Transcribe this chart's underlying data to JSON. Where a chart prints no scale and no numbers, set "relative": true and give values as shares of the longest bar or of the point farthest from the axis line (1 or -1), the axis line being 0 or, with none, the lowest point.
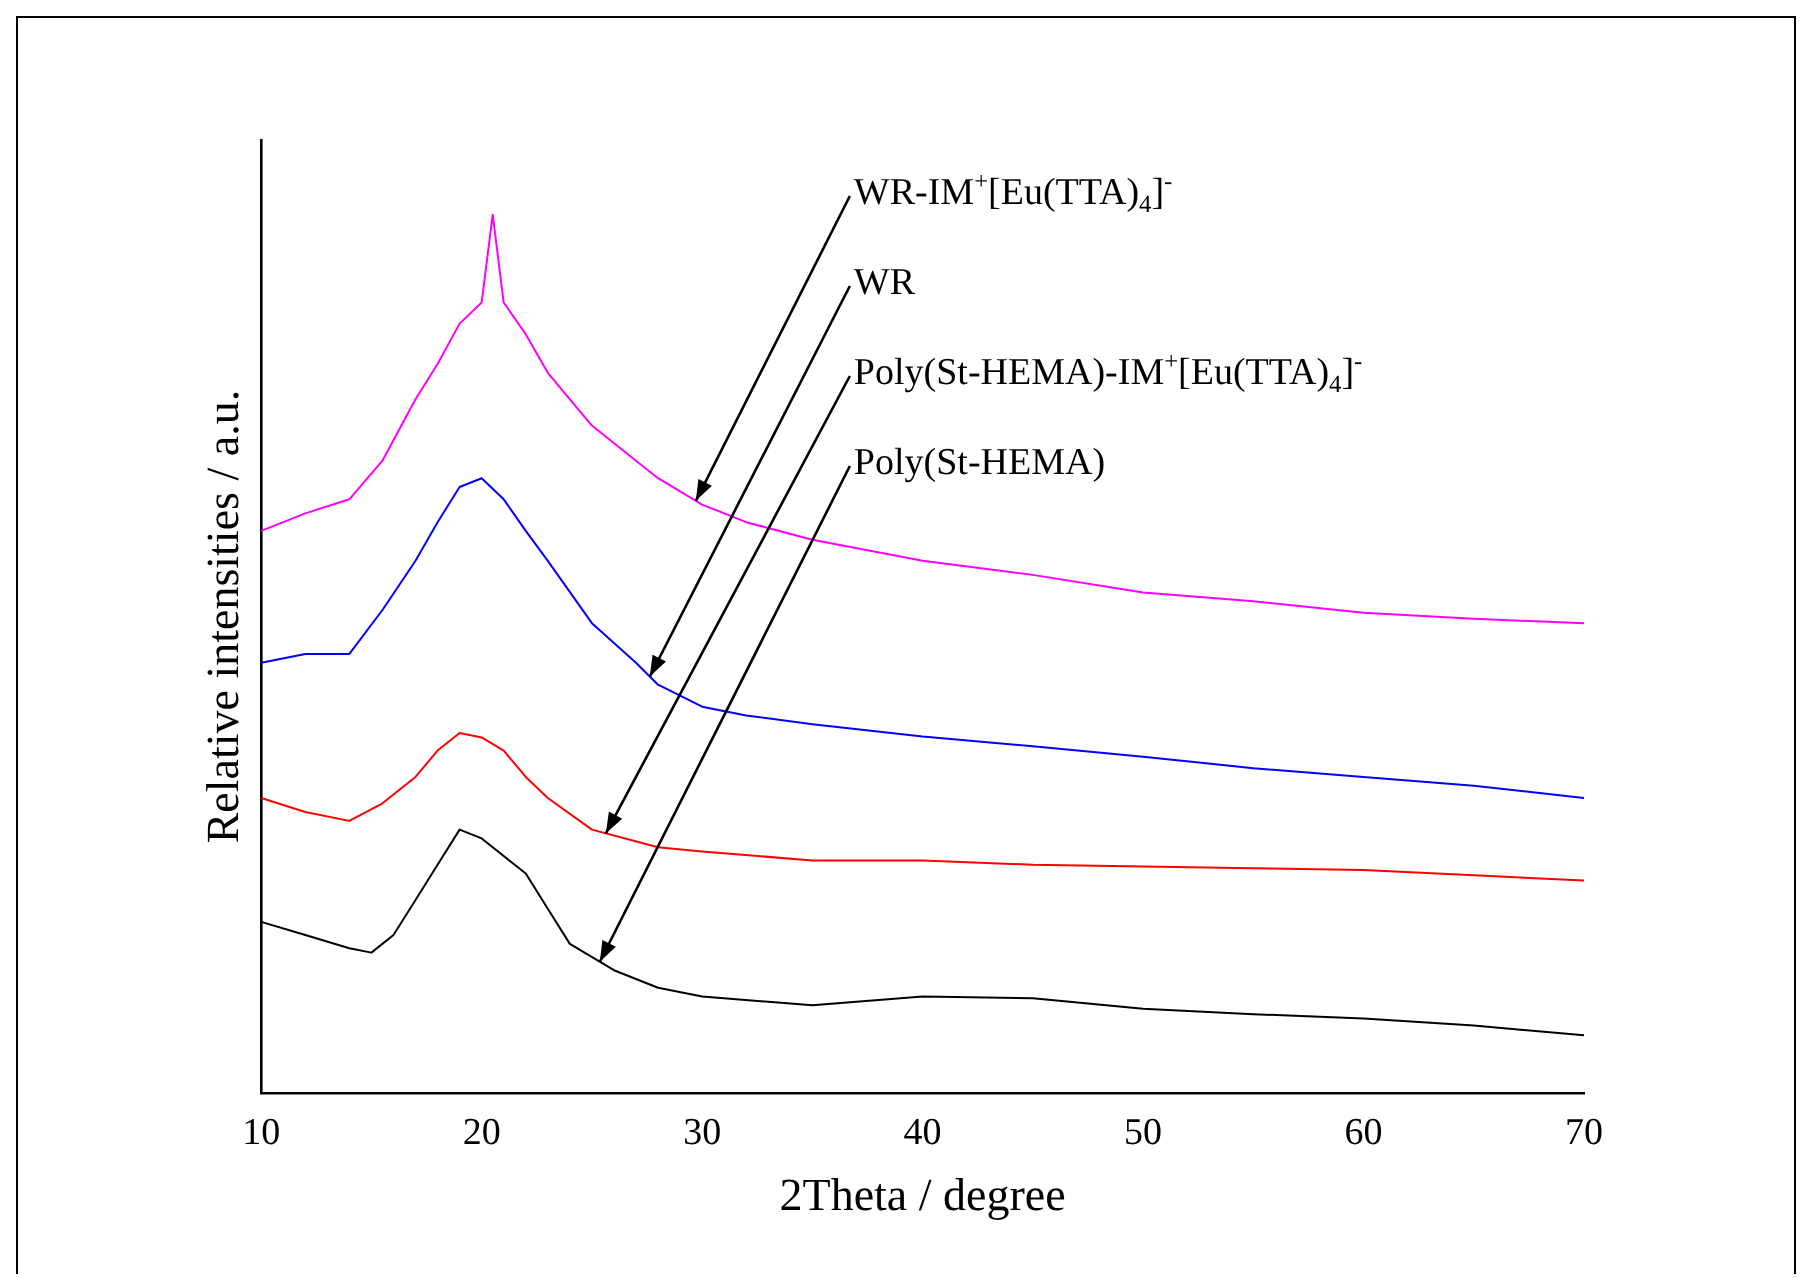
{
  "chart_data": {
    "type": "line",
    "relative": true,
    "xlabel": "2Theta / degree",
    "ylabel": "Relative intensities / a.u.",
    "xlim": [
      10,
      70
    ],
    "xticks": [
      10,
      20,
      30,
      40,
      50,
      60,
      70
    ],
    "tick_labels": "x",
    "grid": false,
    "legend": false,
    "marker": "none",
    "line_style": "solid",
    "series": [
      {
        "name": "WR-IM$^{+}$[Eu(TTA)$_{4}$]$^{-}$",
        "color": "#ff00ff",
        "x": [
          10,
          12,
          14,
          15.5,
          17,
          18,
          19,
          20,
          20.5,
          21,
          22,
          23,
          25,
          27,
          28,
          30,
          32,
          35,
          40,
          45,
          50,
          55,
          60,
          65,
          70
        ],
        "values": [
          0.64,
          0.66,
          0.676,
          0.72,
          0.79,
          0.83,
          0.876,
          0.9,
          1,
          0.9,
          0.864,
          0.82,
          0.76,
          0.72,
          0.7,
          0.67,
          0.65,
          0.63,
          0.606,
          0.59,
          0.57,
          0.56,
          0.547,
          0.54,
          0.535
        ]
      },
      {
        "name": "WR",
        "color": "#0000ff",
        "x": [
          10,
          12,
          14,
          15.5,
          17,
          18,
          19,
          20,
          21,
          22,
          23,
          25,
          27,
          28,
          30,
          32,
          35,
          40,
          45,
          50,
          55,
          60,
          65,
          70
        ],
        "values": [
          0.49,
          0.5,
          0.5,
          0.55,
          0.606,
          0.65,
          0.69,
          0.7,
          0.676,
          0.64,
          0.606,
          0.535,
          0.49,
          0.465,
          0.44,
          0.43,
          0.42,
          0.406,
          0.395,
          0.383,
          0.37,
          0.36,
          0.35,
          0.336
        ]
      },
      {
        "name": "Poly(St-HEMA)-IM$^{+}$[Eu(TTA)$_{4}$]$^{-}$",
        "color": "#ff0000",
        "x": [
          10,
          12,
          14,
          15.5,
          17,
          18,
          19,
          20,
          21,
          22,
          23,
          25,
          28,
          30,
          35,
          40,
          45,
          50,
          55,
          60,
          65,
          70
        ],
        "values": [
          0.336,
          0.32,
          0.31,
          0.33,
          0.36,
          0.39,
          0.41,
          0.405,
          0.39,
          0.36,
          0.336,
          0.3,
          0.28,
          0.275,
          0.265,
          0.265,
          0.26,
          0.258,
          0.256,
          0.254,
          0.248,
          0.242
        ]
      },
      {
        "name": "Poly(St-HEMA)",
        "color": "#000000",
        "x": [
          10,
          12,
          14,
          15,
          16,
          17,
          18,
          19,
          20,
          21,
          22,
          23,
          24,
          26,
          28,
          30,
          35,
          40,
          45,
          50,
          55,
          60,
          65,
          70
        ],
        "values": [
          0.195,
          0.18,
          0.165,
          0.16,
          0.18,
          0.22,
          0.26,
          0.3,
          0.29,
          0.27,
          0.25,
          0.21,
          0.17,
          0.14,
          0.12,
          0.11,
          0.1,
          0.11,
          0.108,
          0.096,
          0.09,
          0.085,
          0.077,
          0.066
        ]
      }
    ]
  }
}
